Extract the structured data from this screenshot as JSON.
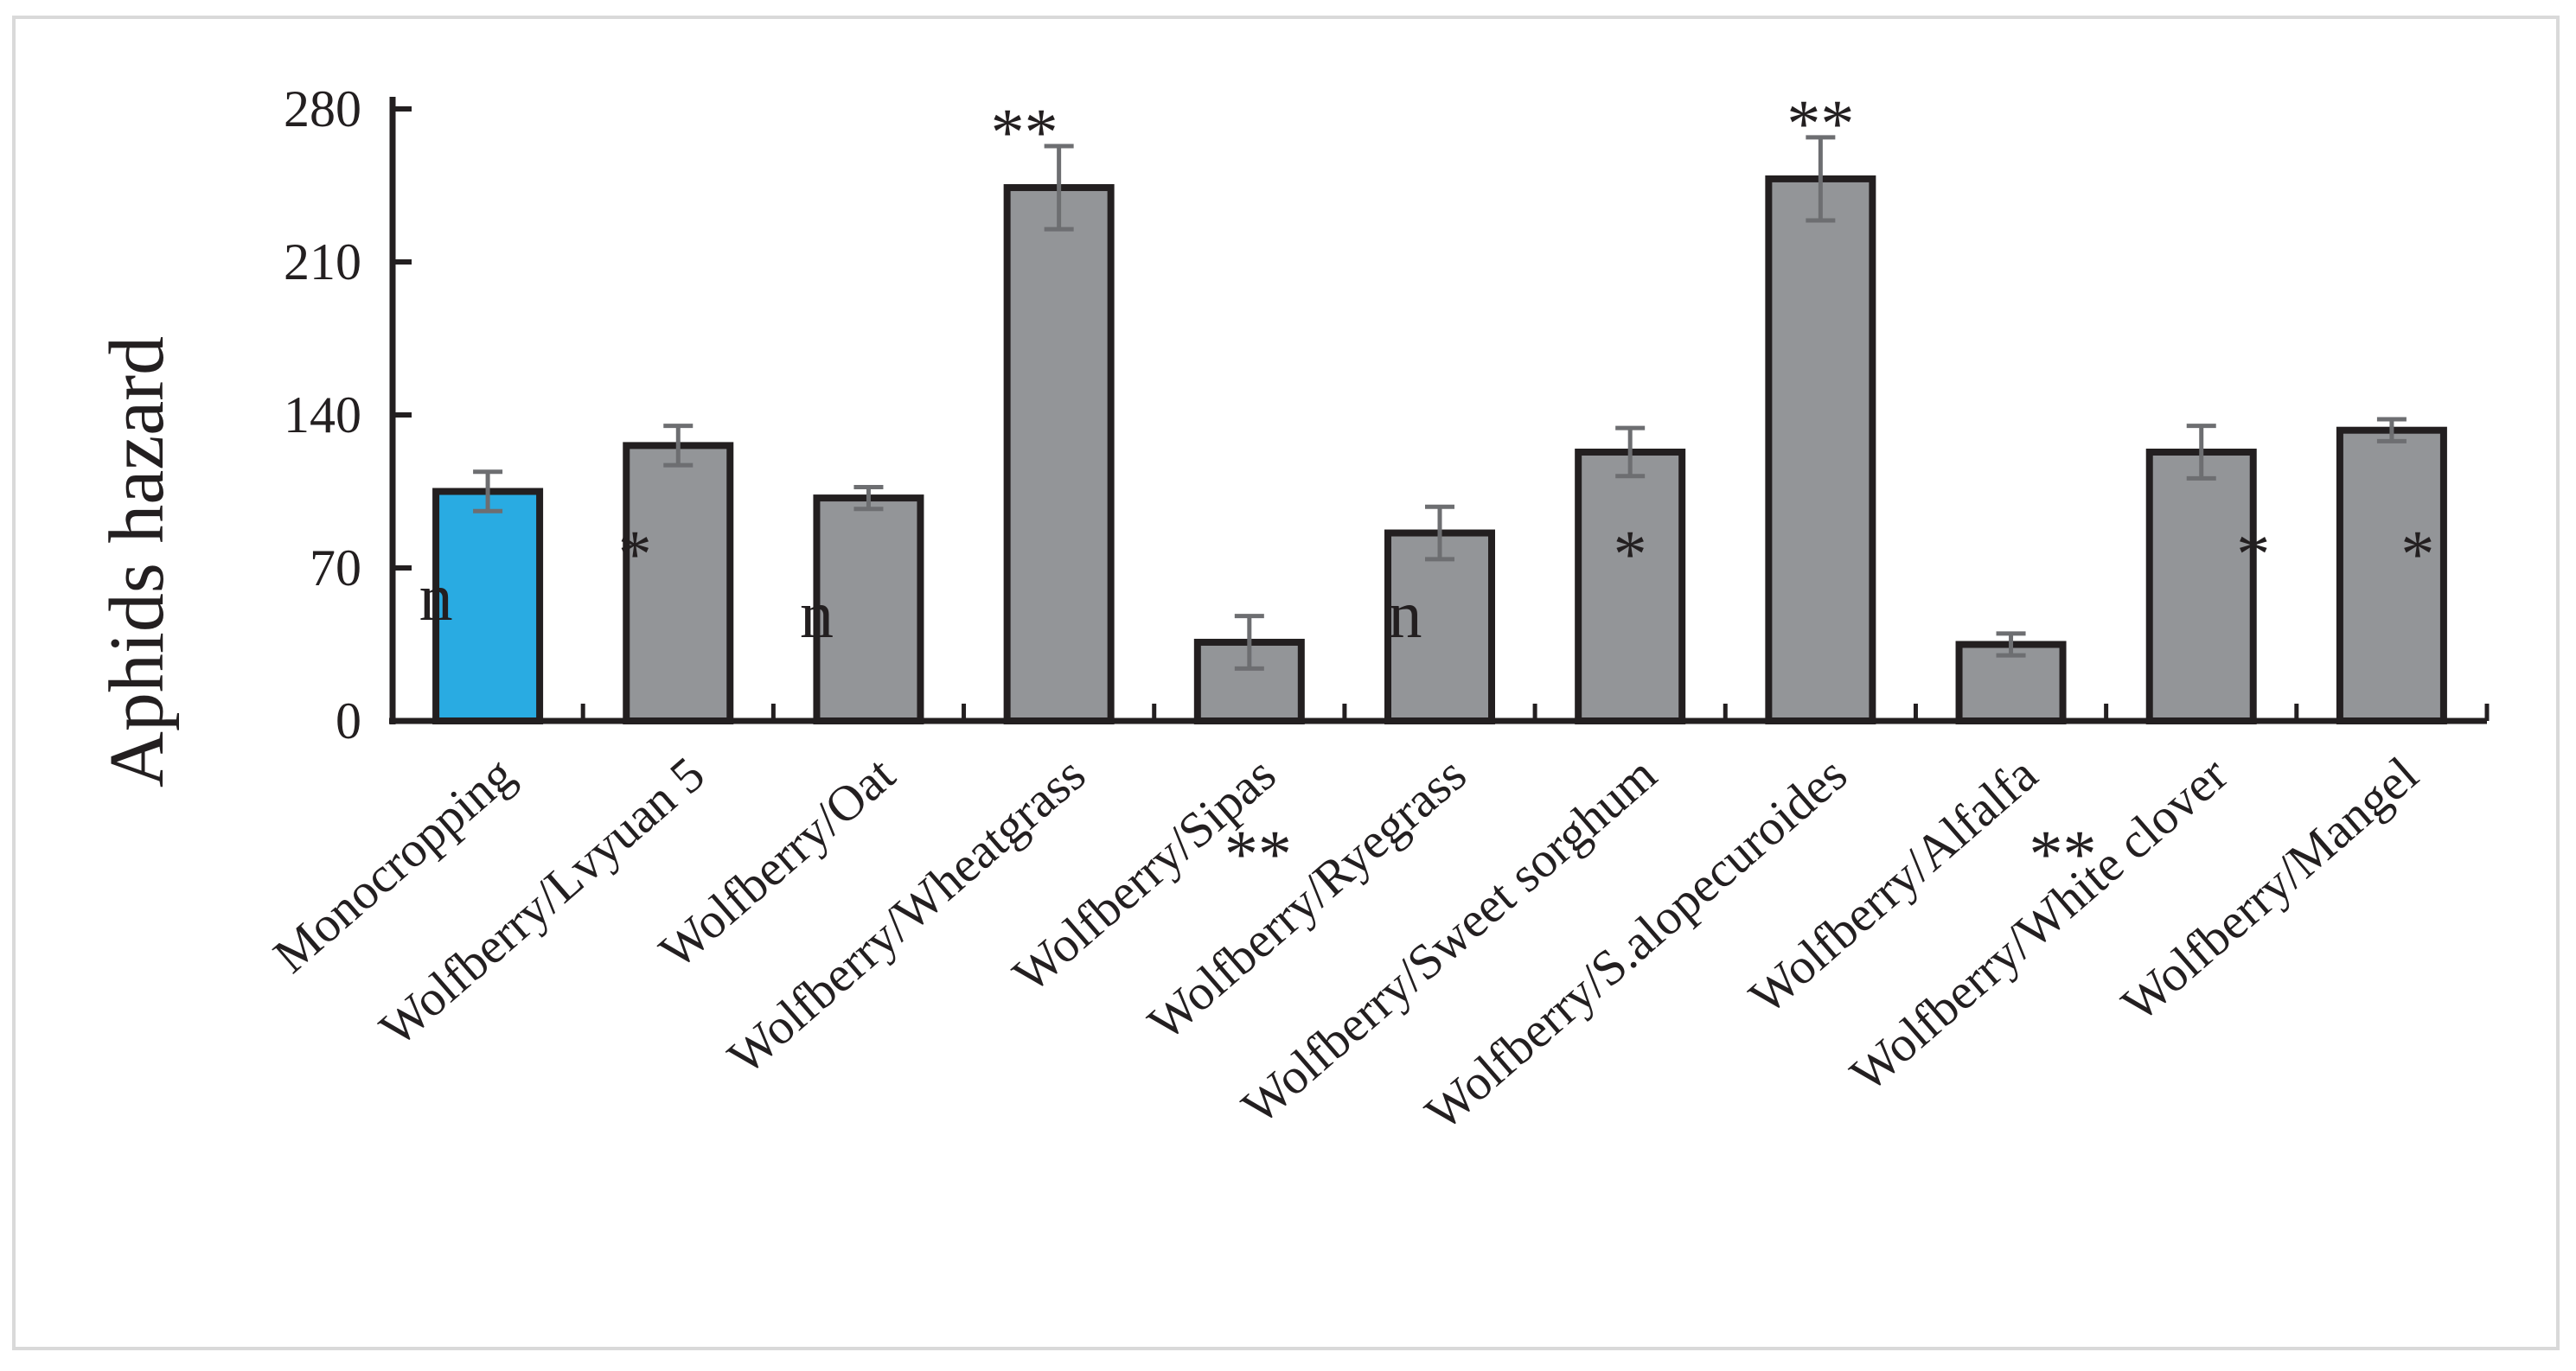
{
  "chart_data": {
    "type": "bar",
    "ylabel": "Aphids hazard",
    "ylim": [
      0,
      280
    ],
    "yticks": [
      0,
      70,
      140,
      210,
      280
    ],
    "grid": false,
    "legend": "none",
    "categories": [
      "Monocropping",
      "Wolfberry/Lvyuan 5",
      "Wolfberry/Oat",
      "Wolfberry/Wheatgrass",
      "Wolfberry/Sipas",
      "Wolfberry/Ryegrass",
      "Wolfberry/Sweet sorghum",
      "Wolfberry/S.alopecuroides",
      "Wolfberry/Alfalfa",
      "Wolfberry/White clover",
      "Wolfberry/Mangel"
    ],
    "values": [
      105,
      126,
      102,
      244,
      36,
      86,
      123,
      248,
      35,
      123,
      133
    ],
    "errors": [
      9,
      9,
      5,
      19,
      12,
      12,
      11,
      19,
      5,
      12,
      5
    ],
    "bar_colors": [
      "#29abe2",
      "#939598",
      "#939598",
      "#939598",
      "#939598",
      "#939598",
      "#939598",
      "#939598",
      "#939598",
      "#939598",
      "#939598"
    ],
    "annotations": [
      {
        "index": 0,
        "text": "n"
      },
      {
        "index": 1,
        "text": "*"
      },
      {
        "index": 2,
        "text": "n"
      },
      {
        "index": 3,
        "text": "**"
      },
      {
        "index": 4,
        "text": "**"
      },
      {
        "index": 5,
        "text": "n"
      },
      {
        "index": 6,
        "text": "*"
      },
      {
        "index": 7,
        "text": "**"
      },
      {
        "index": 8,
        "text": "**"
      },
      {
        "index": 9,
        "text": "*"
      },
      {
        "index": 10,
        "text": "*"
      }
    ]
  }
}
